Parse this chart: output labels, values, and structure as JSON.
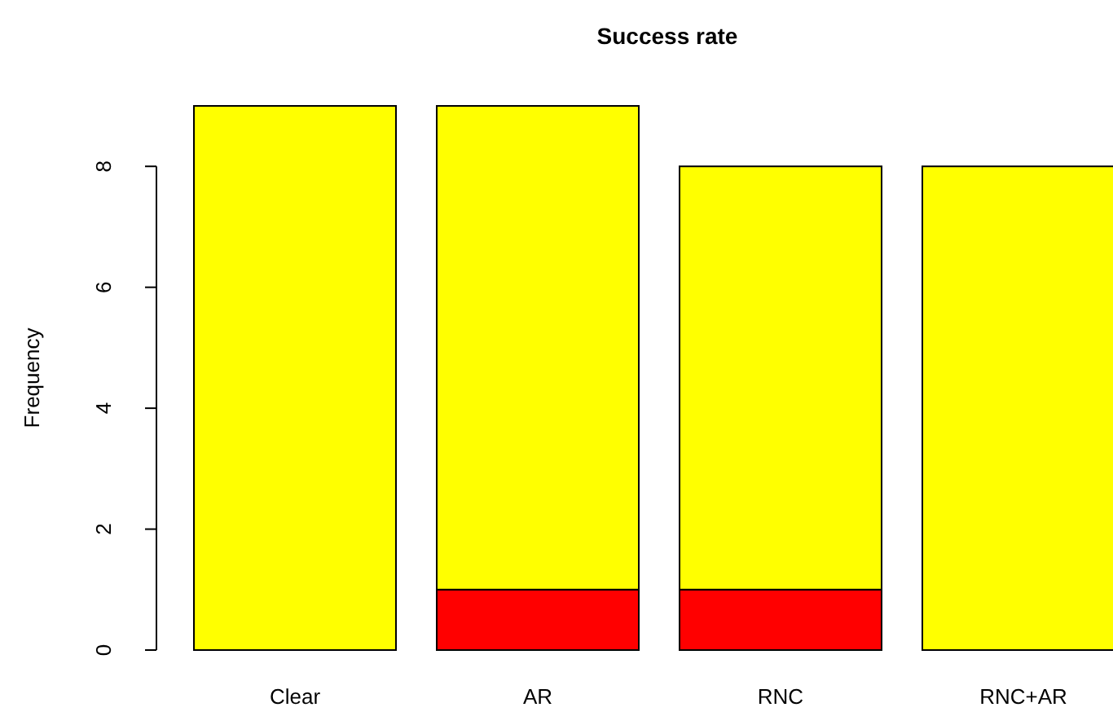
{
  "chart_data": {
    "type": "bar",
    "title": "Success rate",
    "ylabel": "Frequency",
    "categories": [
      "Clear",
      "AR",
      "RNC",
      "RNC+AR"
    ],
    "stacked": true,
    "series": [
      {
        "color": "#ff0000",
        "values": [
          0,
          1,
          1,
          0
        ]
      },
      {
        "color": "#ffff00",
        "values": [
          9,
          8,
          7,
          8
        ]
      }
    ],
    "ylim": [
      0,
      9
    ],
    "yticks": [
      0,
      2,
      4,
      6,
      8
    ]
  }
}
